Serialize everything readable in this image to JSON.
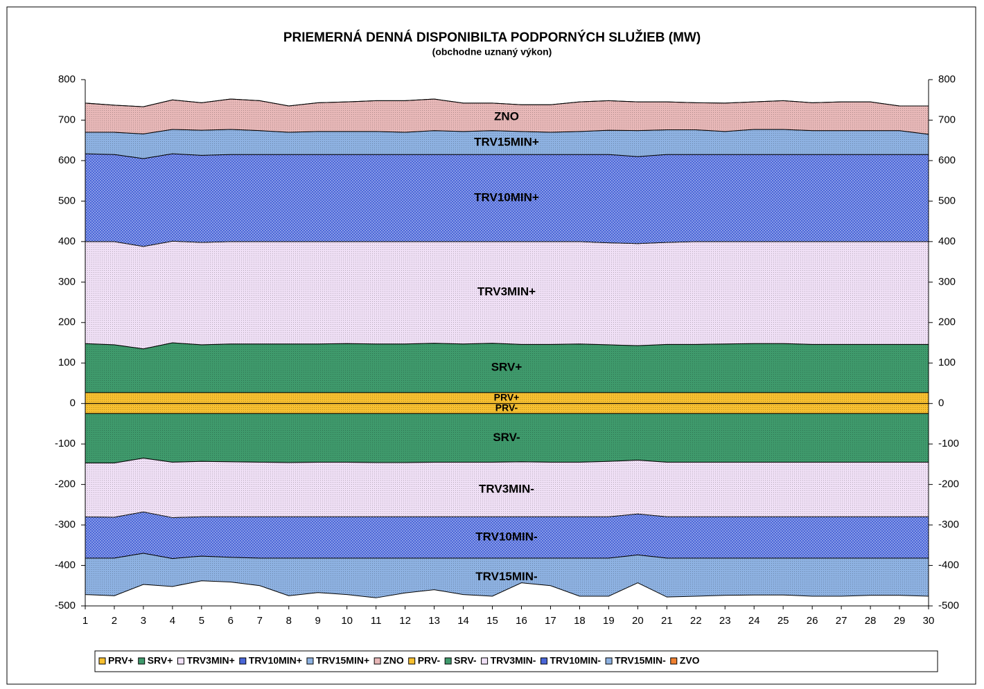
{
  "chart_data": {
    "type": "stacked-area",
    "title": "PRIEMERNÁ  DENNÁ  DISPONIBILTA  PODPORNÝCH  SLUŽIEB (MW)",
    "subtitle": "(obchodne uznaný výkon)",
    "x": [
      1,
      2,
      3,
      4,
      5,
      6,
      7,
      8,
      9,
      10,
      11,
      12,
      13,
      14,
      15,
      16,
      17,
      18,
      19,
      20,
      21,
      22,
      23,
      24,
      25,
      26,
      27,
      28,
      29,
      30
    ],
    "xlim": [
      1,
      30
    ],
    "xticks": [
      1,
      2,
      3,
      4,
      5,
      6,
      7,
      8,
      9,
      10,
      11,
      12,
      13,
      14,
      15,
      16,
      17,
      18,
      19,
      20,
      21,
      22,
      23,
      24,
      25,
      26,
      27,
      28,
      29,
      30
    ],
    "ylim": [
      -500,
      800
    ],
    "yticks": [
      -500,
      -400,
      -300,
      -200,
      -100,
      0,
      100,
      200,
      300,
      400,
      500,
      600,
      700,
      800
    ],
    "y2lim": [
      -500,
      800
    ],
    "y2ticks": [
      -500,
      -400,
      -300,
      -200,
      -100,
      0,
      100,
      200,
      300,
      400,
      500,
      600,
      700,
      800
    ],
    "series": [
      {
        "name": "PRV+",
        "color": "#f8c030",
        "values": [
          27,
          27,
          27,
          27,
          27,
          27,
          27,
          27,
          27,
          27,
          27,
          27,
          27,
          27,
          27,
          27,
          27,
          27,
          27,
          27,
          27,
          27,
          27,
          27,
          27,
          27,
          27,
          27,
          27,
          27
        ]
      },
      {
        "name": "SRV+",
        "color": "#3f9a6c",
        "values": [
          121,
          118,
          108,
          123,
          118,
          120,
          120,
          120,
          120,
          121,
          120,
          120,
          122,
          120,
          122,
          119,
          119,
          120,
          118,
          116,
          119,
          119,
          120,
          121,
          121,
          119,
          119,
          119,
          119,
          119
        ]
      },
      {
        "name": "TRV3MIN+",
        "color": "#f0e0f6",
        "values": [
          252,
          255,
          253,
          251,
          253,
          253,
          253,
          253,
          253,
          252,
          253,
          253,
          251,
          253,
          251,
          254,
          254,
          253,
          252,
          252,
          252,
          254,
          253,
          252,
          252,
          254,
          254,
          254,
          254,
          254
        ]
      },
      {
        "name": "TRV10MIN+",
        "color": "#4a66d8",
        "values": [
          217,
          215,
          217,
          216,
          215,
          215,
          215,
          215,
          215,
          215,
          215,
          215,
          215,
          215,
          215,
          215,
          215,
          215,
          218,
          215,
          217,
          215,
          215,
          215,
          215,
          215,
          215,
          215,
          215,
          215
        ]
      },
      {
        "name": "TRV15MIN+",
        "color": "#8eb2e2",
        "values": [
          53,
          55,
          61,
          60,
          62,
          62,
          59,
          55,
          57,
          57,
          57,
          55,
          59,
          57,
          59,
          57,
          55,
          57,
          60,
          64,
          61,
          61,
          57,
          62,
          62,
          59,
          59,
          59,
          59,
          50
        ]
      },
      {
        "name": "ZNO",
        "color": "#e8b8b8",
        "values": [
          72,
          67,
          67,
          73,
          68,
          75,
          74,
          65,
          71,
          73,
          76,
          78,
          78,
          70,
          68,
          66,
          68,
          73,
          73,
          71,
          69,
          67,
          70,
          68,
          71,
          69,
          71,
          71,
          61,
          70
        ]
      },
      {
        "name": "PRV-",
        "color": "#f8c030",
        "values": [
          -25,
          -25,
          -25,
          -25,
          -25,
          -25,
          -25,
          -25,
          -25,
          -25,
          -25,
          -25,
          -25,
          -25,
          -25,
          -25,
          -25,
          -25,
          -25,
          -25,
          -25,
          -25,
          -25,
          -25,
          -25,
          -25,
          -25,
          -25,
          -25,
          -25
        ]
      },
      {
        "name": "SRV-",
        "color": "#3f9a6c",
        "values": [
          -122,
          -122,
          -110,
          -120,
          -118,
          -119,
          -120,
          -121,
          -120,
          -120,
          -121,
          -121,
          -120,
          -120,
          -120,
          -119,
          -120,
          -120,
          -118,
          -115,
          -120,
          -120,
          -120,
          -120,
          -120,
          -120,
          -120,
          -120,
          -120,
          -120
        ]
      },
      {
        "name": "TRV3MIN-",
        "color": "#f0e0f6",
        "values": [
          -133,
          -134,
          -133,
          -137,
          -137,
          -136,
          -135,
          -134,
          -135,
          -135,
          -134,
          -134,
          -135,
          -135,
          -135,
          -136,
          -135,
          -135,
          -137,
          -133,
          -135,
          -135,
          -135,
          -135,
          -135,
          -135,
          -135,
          -135,
          -135,
          -135
        ]
      },
      {
        "name": "TRV10MIN-",
        "color": "#4a66d8",
        "values": [
          -102,
          -101,
          -102,
          -101,
          -97,
          -100,
          -102,
          -102,
          -102,
          -102,
          -102,
          -102,
          -102,
          -102,
          -102,
          -102,
          -102,
          -102,
          -102,
          -101,
          -102,
          -102,
          -102,
          -102,
          -102,
          -102,
          -102,
          -102,
          -102,
          -102
        ]
      },
      {
        "name": "TRV15MIN-",
        "color": "#8eb2e2",
        "values": [
          -90,
          -93,
          -77,
          -69,
          -61,
          -61,
          -68,
          -93,
          -85,
          -90,
          -98,
          -86,
          -78,
          -90,
          -94,
          -61,
          -68,
          -94,
          -94,
          -69,
          -96,
          -94,
          -92,
          -91,
          -91,
          -94,
          -94,
          -92,
          -92,
          -94
        ]
      },
      {
        "name": "ZVO",
        "color": "#f08030",
        "values": [
          0,
          0,
          0,
          0,
          0,
          0,
          0,
          0,
          0,
          0,
          0,
          0,
          0,
          0,
          0,
          0,
          0,
          0,
          0,
          0,
          0,
          0,
          0,
          0,
          0,
          0,
          0,
          0,
          0,
          0
        ]
      }
    ]
  }
}
